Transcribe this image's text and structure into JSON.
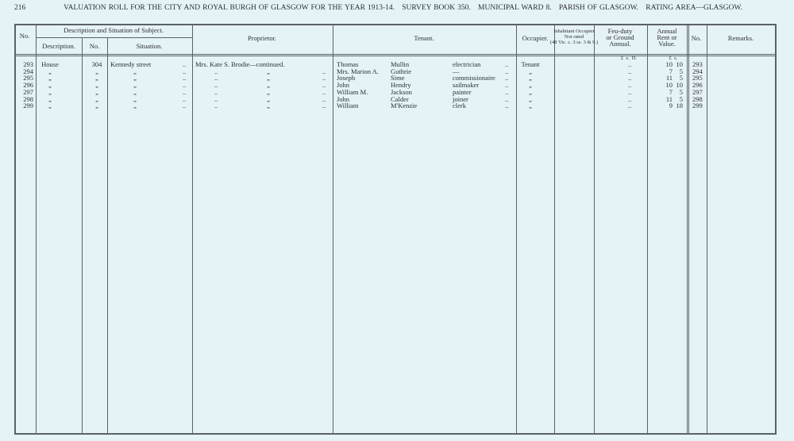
{
  "header": {
    "page_number": "216",
    "title": "VALUATION ROLL FOR THE CITY AND ROYAL BURGH OF GLASGOW FOR THE YEAR 1913-14.   SURVEY BOOK 350.   MUNICIPAL WARD 8.   PARISH OF GLASGOW.   RATING AREA—GLASGOW."
  },
  "table": {
    "headers": {
      "no": "No.",
      "description_situation": "Description and Situation of Subject.",
      "description": "Description.",
      "subject_no": "No.",
      "situation": "Situation.",
      "proprietor": "Proprietor.",
      "tenant": "Tenant.",
      "occupier": "Occupier.",
      "inhabitant": [
        "Inhabitant Occupier",
        "Not rated",
        "(48 Vic. c. 3 ss. 3 & 9.)"
      ],
      "feu_duty": [
        "Feu-duty",
        "or Ground",
        "Annual."
      ],
      "annual": [
        "Annual",
        "Rent or",
        "Value."
      ],
      "no_right": "No.",
      "remarks": "Remarks."
    },
    "units": {
      "feu_duty": "£  s.  D.",
      "annual": "£  s."
    },
    "leader": "..",
    "rows": [
      {
        "no": 293,
        "description": "House",
        "subject_no": "304",
        "situation": "Kennedy street",
        "proprietor": "Mrs. Kate S. Brodie—continued.",
        "tenant_first": "Thomas",
        "tenant_surname": "Mullin",
        "tenant_occupation": "electrician",
        "occupier": "Tenant",
        "rent_pounds": 10,
        "rent_shillings": 10
      },
      {
        "no": 294,
        "description": "„",
        "subject_no": "„",
        "situation": "„",
        "proprietor": "„",
        "tenant_first": "Mrs. Marion A.",
        "tenant_surname": "Guthrie",
        "tenant_occupation": "—",
        "occupier": "„",
        "rent_pounds": 7,
        "rent_shillings": 5
      },
      {
        "no": 295,
        "description": "„",
        "subject_no": "„",
        "situation": "„",
        "proprietor": "„",
        "tenant_first": "Joseph",
        "tenant_surname": "Sime",
        "tenant_occupation": "commissionaire",
        "occupier": "„",
        "rent_pounds": 11,
        "rent_shillings": 5
      },
      {
        "no": 296,
        "description": "„",
        "subject_no": "„",
        "situation": "„",
        "proprietor": "„",
        "tenant_first": "John",
        "tenant_surname": "Hendry",
        "tenant_occupation": "sailmaker",
        "occupier": "„",
        "rent_pounds": 10,
        "rent_shillings": 10
      },
      {
        "no": 297,
        "description": "„",
        "subject_no": "„",
        "situation": "„",
        "proprietor": "„",
        "tenant_first": "William M.",
        "tenant_surname": "Jackson",
        "tenant_occupation": "painter",
        "occupier": "„",
        "rent_pounds": 7,
        "rent_shillings": 5
      },
      {
        "no": 298,
        "description": "„",
        "subject_no": "„",
        "situation": "„",
        "proprietor": "„",
        "tenant_first": "John",
        "tenant_surname": "Calder",
        "tenant_occupation": "joiner",
        "occupier": "„",
        "rent_pounds": 11,
        "rent_shillings": 5
      },
      {
        "no": 299,
        "description": "„",
        "subject_no": "„",
        "situation": "„",
        "proprietor": "„",
        "tenant_first": "William",
        "tenant_surname": "M'Kenzie",
        "tenant_occupation": "clerk",
        "occupier": "„",
        "rent_pounds": 9,
        "rent_shillings": 18
      }
    ]
  }
}
